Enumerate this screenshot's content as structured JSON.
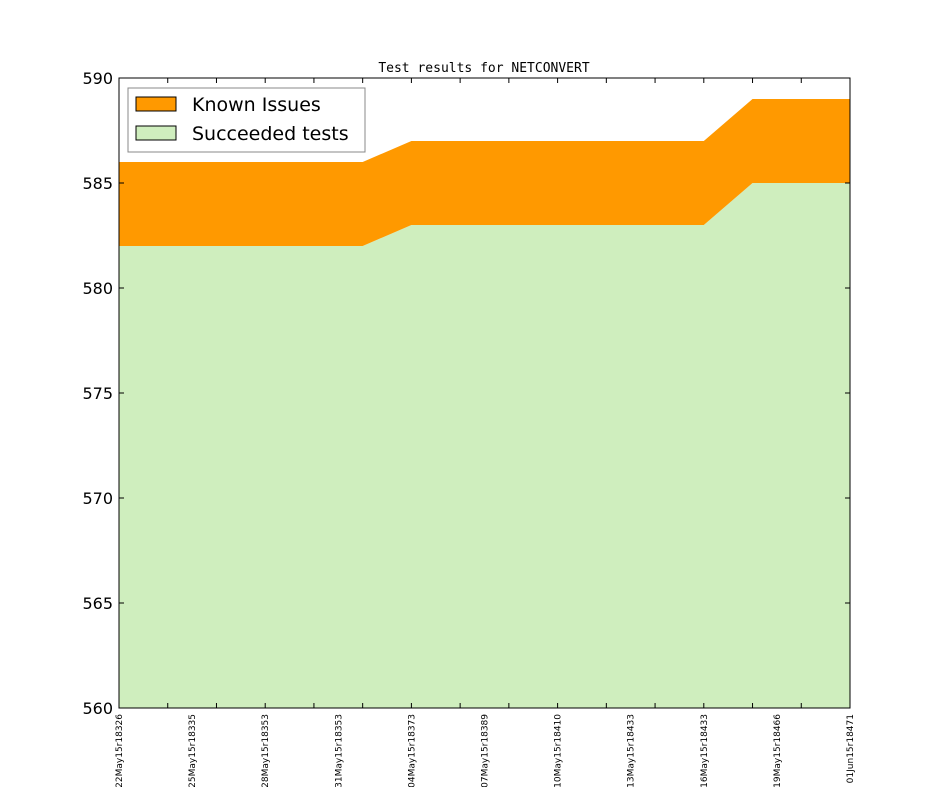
{
  "chart_data": {
    "type": "area",
    "title": "Test results for NETCONVERT",
    "xlabel": "",
    "ylabel": "",
    "ylim": [
      560,
      590
    ],
    "yticks": [
      560,
      565,
      570,
      575,
      580,
      585,
      590
    ],
    "categories": [
      "22May15r18326",
      "25May15r18335",
      "28May15r18353",
      "31May15r18353",
      "04May15r18373",
      "07May15r18389",
      "10May15r18410",
      "13May15r18433",
      "16May15r18433",
      "19May15r18466",
      "01Jun15r18471"
    ],
    "x": [
      0,
      1,
      2,
      3,
      4,
      5,
      6,
      7,
      8,
      9,
      10,
      11,
      12,
      13,
      14,
      15
    ],
    "series": [
      {
        "name": "Succeeded tests",
        "color": "#cfeebe",
        "values": [
          582,
          582,
          582,
          582,
          582,
          582,
          583,
          583,
          583,
          583,
          583,
          583,
          583,
          585,
          585,
          585
        ]
      },
      {
        "name": "Known Issues",
        "color": "#ff9900",
        "values": [
          4,
          4,
          4,
          4,
          4,
          4,
          4,
          4,
          4,
          4,
          4,
          4,
          4,
          4,
          4,
          4
        ]
      }
    ],
    "legend": "top-left",
    "grid": false
  }
}
